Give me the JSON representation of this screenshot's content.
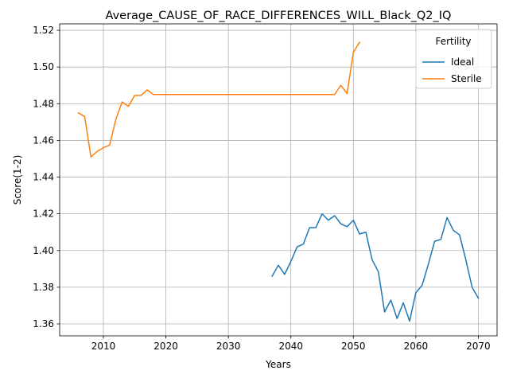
{
  "chart_data": {
    "type": "line",
    "title": "Average_CAUSE_OF_RACE_DIFFERENCES_WILL_Black_Q2_IQ",
    "xlabel": "Years",
    "ylabel": "Score(1-2)",
    "xlim": [
      2003,
      2073
    ],
    "ylim": [
      1.3535,
      1.5235
    ],
    "x_ticks": [
      2010,
      2020,
      2030,
      2040,
      2050,
      2060,
      2070
    ],
    "y_ticks": [
      1.36,
      1.38,
      1.4,
      1.42,
      1.44,
      1.46,
      1.48,
      1.5,
      1.52
    ],
    "grid": true,
    "legend": {
      "title": "Fertility",
      "placement": "top-right"
    },
    "series": [
      {
        "name": "Ideal",
        "color": "#1f77b4",
        "x": [
          2037,
          2038,
          2039,
          2040,
          2041,
          2042,
          2043,
          2044,
          2045,
          2046,
          2047,
          2048,
          2049,
          2050,
          2051,
          2052,
          2053,
          2054,
          2055,
          2056,
          2057,
          2058,
          2059,
          2060,
          2061,
          2062,
          2063,
          2064,
          2065,
          2066,
          2067,
          2068,
          2069,
          2070
        ],
        "values": [
          1.386,
          1.392,
          1.387,
          1.394,
          1.402,
          1.4035,
          1.4125,
          1.4125,
          1.42,
          1.4165,
          1.419,
          1.4145,
          1.413,
          1.4165,
          1.409,
          1.41,
          1.395,
          1.3885,
          1.3665,
          1.373,
          1.363,
          1.3715,
          1.3615,
          1.377,
          1.381,
          1.3925,
          1.405,
          1.406,
          1.418,
          1.411,
          1.4085,
          1.395,
          1.38,
          1.374
        ]
      },
      {
        "name": "Sterile",
        "color": "#ff7f0e",
        "x": [
          2006,
          2007,
          2008,
          2009,
          2010,
          2011,
          2012,
          2013,
          2014,
          2015,
          2016,
          2017,
          2018,
          2019,
          2020,
          2025,
          2030,
          2035,
          2040,
          2045,
          2046,
          2047,
          2048,
          2049,
          2050,
          2051
        ],
        "values": [
          1.475,
          1.473,
          1.451,
          1.454,
          1.456,
          1.4575,
          1.4715,
          1.481,
          1.4785,
          1.4845,
          1.4845,
          1.4875,
          1.485,
          1.485,
          1.485,
          1.485,
          1.485,
          1.485,
          1.485,
          1.485,
          1.485,
          1.485,
          1.49,
          1.4855,
          1.508,
          1.5135
        ]
      }
    ]
  }
}
